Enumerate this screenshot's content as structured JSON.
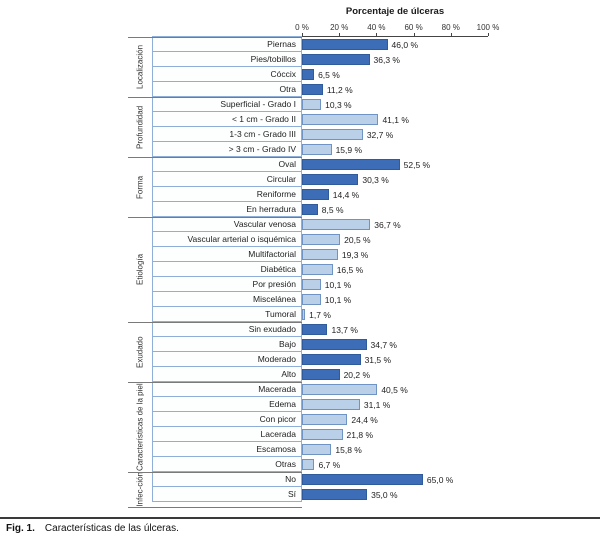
{
  "caption": {
    "fig": "Fig. 1.",
    "text": "Características de las úlceras."
  },
  "colors": {
    "dark_bar": "#3d6db6",
    "dark_bar_border": "#2f5a9b",
    "light_bar": "#bad0e8",
    "light_bar_border": "#6f94c4",
    "cell_border": "#8fafd8"
  },
  "chart_data": {
    "type": "bar",
    "orientation": "horizontal",
    "title": "Porcentaje de úlceras",
    "xlabel": "Porcentaje de úlceras",
    "xlim": [
      0,
      100
    ],
    "tick_labels": [
      "0 %",
      "20 %",
      "40 %",
      "60 %",
      "80 %",
      "100 %"
    ],
    "legend": "none",
    "groups": [
      {
        "name": "Localización",
        "shade": "dark",
        "items": [
          {
            "label": "Piernas",
            "value": 46.0,
            "display": "46,0 %"
          },
          {
            "label": "Pies/tobillos",
            "value": 36.3,
            "display": "36,3 %"
          },
          {
            "label": "Cóccix",
            "value": 6.5,
            "display": "6,5 %"
          },
          {
            "label": "Otra",
            "value": 11.2,
            "display": "11,2 %"
          }
        ]
      },
      {
        "name": "Profundidad",
        "shade": "light",
        "items": [
          {
            "label": "Superficial - Grado I",
            "value": 10.3,
            "display": "10,3 %"
          },
          {
            "label": "< 1 cm - Grado II",
            "value": 41.1,
            "display": "41,1 %"
          },
          {
            "label": "1-3 cm - Grado III",
            "value": 32.7,
            "display": "32,7 %"
          },
          {
            "label": "> 3 cm - Grado IV",
            "value": 15.9,
            "display": "15,9 %"
          }
        ]
      },
      {
        "name": "Forma",
        "shade": "dark",
        "items": [
          {
            "label": "Oval",
            "value": 52.5,
            "display": "52,5 %"
          },
          {
            "label": "Circular",
            "value": 30.3,
            "display": "30,3 %"
          },
          {
            "label": "Reniforme",
            "value": 14.4,
            "display": "14,4 %"
          },
          {
            "label": "En herradura",
            "value": 8.5,
            "display": "8,5 %"
          }
        ]
      },
      {
        "name": "Etiología",
        "shade": "light",
        "items": [
          {
            "label": "Vascular venosa",
            "value": 36.7,
            "display": "36,7 %"
          },
          {
            "label": "Vascular arterial o isquémica",
            "value": 20.5,
            "display": "20,5 %"
          },
          {
            "label": "Multifactorial",
            "value": 19.3,
            "display": "19,3 %"
          },
          {
            "label": "Diabética",
            "value": 16.5,
            "display": "16,5 %"
          },
          {
            "label": "Por presión",
            "value": 10.1,
            "display": "10,1 %"
          },
          {
            "label": "Miscelánea",
            "value": 10.1,
            "display": "10,1 %"
          },
          {
            "label": "Tumoral",
            "value": 1.7,
            "display": "1,7 %"
          }
        ]
      },
      {
        "name": "Exudado",
        "shade": "dark",
        "items": [
          {
            "label": "Sin exudado",
            "value": 13.7,
            "display": "13,7 %"
          },
          {
            "label": "Bajo",
            "value": 34.7,
            "display": "34,7 %"
          },
          {
            "label": "Moderado",
            "value": 31.5,
            "display": "31,5 %"
          },
          {
            "label": "Alto",
            "value": 20.2,
            "display": "20,2 %"
          }
        ]
      },
      {
        "name": "Características de la piel",
        "shade": "light",
        "items": [
          {
            "label": "Macerada",
            "value": 40.5,
            "display": "40,5 %"
          },
          {
            "label": "Edema",
            "value": 31.1,
            "display": "31,1 %"
          },
          {
            "label": "Con picor",
            "value": 24.4,
            "display": "24,4 %"
          },
          {
            "label": "Lacerada",
            "value": 21.8,
            "display": "21,8 %"
          },
          {
            "label": "Escamosa",
            "value": 15.8,
            "display": "15,8 %"
          },
          {
            "label": "Otras",
            "value": 6.7,
            "display": "6,7 %"
          }
        ]
      },
      {
        "name": "Infec-ción",
        "shade": "dark",
        "items": [
          {
            "label": "No",
            "value": 65.0,
            "display": "65,0 %"
          },
          {
            "label": "Sí",
            "value": 35.0,
            "display": "35,0 %"
          }
        ]
      }
    ]
  }
}
